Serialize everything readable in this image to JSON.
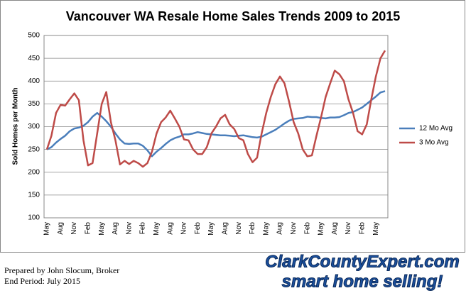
{
  "chart_data": {
    "type": "line",
    "title": "Vancouver WA Resale Home Sales Trends 2009 to 2015",
    "y_label": "Sold Homes per Month",
    "categories": [
      "May",
      null,
      null,
      "Aug",
      null,
      null,
      "Nov",
      null,
      null,
      "Feb",
      null,
      null,
      "May",
      null,
      null,
      "Aug",
      null,
      null,
      "Nov",
      null,
      null,
      "Feb",
      null,
      null,
      "May",
      null,
      null,
      "Aug",
      null,
      null,
      "Nov",
      null,
      null,
      "Feb",
      null,
      null,
      "May",
      null,
      null,
      "Aug",
      null,
      null,
      "Nov",
      null,
      null,
      "Feb",
      null,
      null,
      "May",
      null,
      null,
      "Aug",
      null,
      null,
      "Nov",
      null,
      null,
      "Feb",
      null,
      null,
      "May",
      null,
      null,
      "Aug",
      null,
      null,
      "Nov",
      null,
      null,
      "Feb",
      null,
      null,
      "May",
      null,
      null
    ],
    "series": [
      {
        "name": "12 Mo Avg",
        "color": "#4a7ebb",
        "values": [
          250,
          255,
          265,
          273,
          280,
          290,
          296,
          298,
          302,
          310,
          322,
          330,
          322,
          312,
          300,
          285,
          272,
          263,
          262,
          263,
          263,
          258,
          248,
          235,
          245,
          253,
          262,
          270,
          275,
          278,
          283,
          283,
          285,
          288,
          286,
          284,
          283,
          282,
          281,
          281,
          280,
          279,
          280,
          281,
          279,
          277,
          276,
          278,
          283,
          288,
          293,
          300,
          307,
          313,
          317,
          318,
          319,
          322,
          321,
          321,
          319,
          318,
          320,
          320,
          321,
          325,
          330,
          332,
          337,
          342,
          350,
          358,
          366,
          375,
          378
        ]
      },
      {
        "name": "3 Mo Avg",
        "color": "#be4b48",
        "values": [
          250,
          280,
          330,
          348,
          346,
          360,
          373,
          358,
          270,
          215,
          220,
          285,
          350,
          376,
          310,
          270,
          217,
          225,
          218,
          225,
          220,
          212,
          220,
          245,
          285,
          310,
          320,
          335,
          318,
          300,
          272,
          270,
          250,
          240,
          240,
          255,
          285,
          300,
          318,
          326,
          305,
          295,
          275,
          270,
          240,
          222,
          232,
          285,
          330,
          365,
          393,
          410,
          395,
          355,
          310,
          285,
          250,
          235,
          237,
          280,
          320,
          365,
          395,
          423,
          415,
          400,
          360,
          330,
          290,
          283,
          305,
          360,
          410,
          450,
          467
        ]
      }
    ],
    "ylim": [
      100,
      500
    ],
    "yticks": [
      100,
      150,
      200,
      250,
      300,
      350,
      400,
      450,
      500
    ],
    "grid": true,
    "legend": "right"
  },
  "footer": {
    "prepared_by": "Prepared by John Slocum, Broker",
    "end_period": "End Period: July 2015"
  },
  "logo": {
    "site": "ClarkCountyExpert.com",
    "tagline": "smart home selling!"
  }
}
